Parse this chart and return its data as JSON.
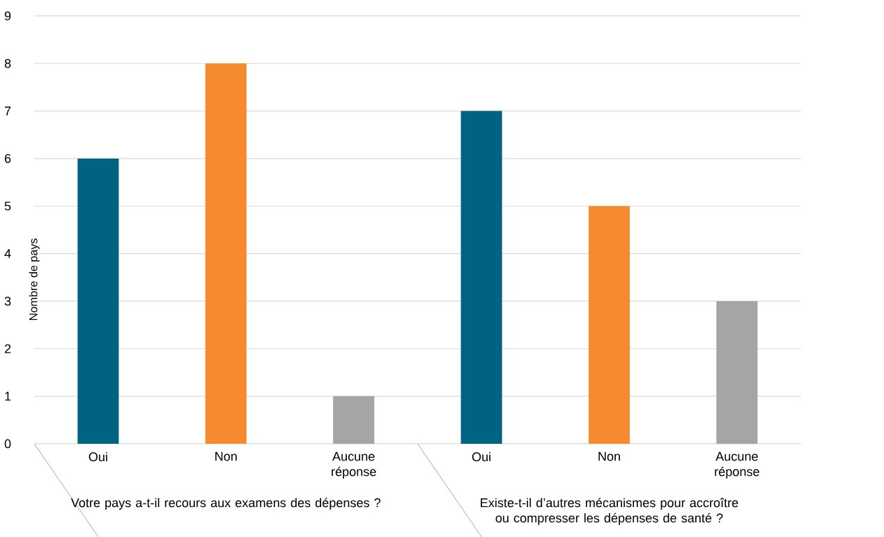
{
  "chart_data": {
    "type": "bar",
    "ylabel": "Nombre de pays",
    "categories": [
      "Oui",
      "Non",
      "Aucune réponse",
      "Oui",
      "Non",
      "Aucune réponse"
    ],
    "values": [
      6,
      8,
      1,
      7,
      5,
      3
    ],
    "colors": [
      "#006382",
      "#f58a2e",
      "#a5a5a5",
      "#006382",
      "#f58a2e",
      "#a5a5a5"
    ],
    "ylim": [
      0,
      9
    ],
    "yticks": [
      0,
      1,
      2,
      3,
      4,
      5,
      6,
      7,
      8,
      9
    ],
    "grid": "y",
    "annotations": [
      "Votre pays a-t-il recours aux examens des dépenses ?",
      "Existe-t-il d’autres mécanismes pour accroître ou compresser les dépenses de santé ?"
    ]
  }
}
